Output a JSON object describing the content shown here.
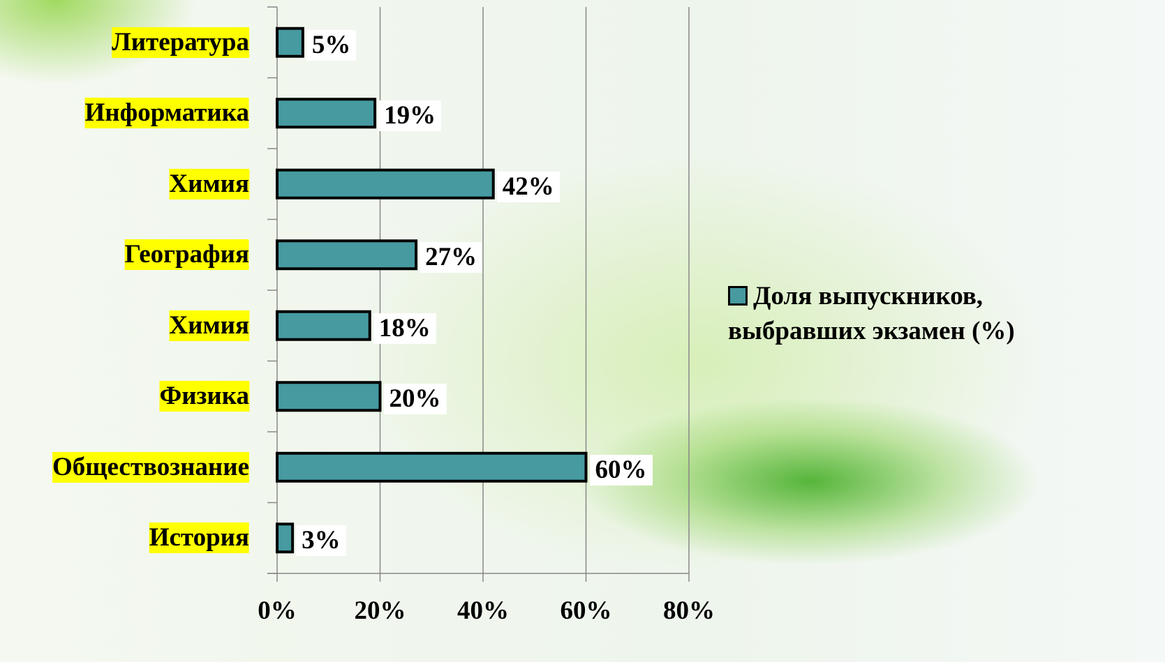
{
  "chart_data": {
    "type": "bar",
    "categories": [
      "Литература",
      "Информатика",
      "Химия",
      "География",
      "Химия",
      "Физика",
      "Обществознание",
      "История"
    ],
    "series": [
      {
        "name": "Доля выпускников, выбравших экзамен (%)",
        "color": "#469aa0",
        "values": [
          5,
          19,
          42,
          27,
          18,
          20,
          60,
          3
        ],
        "value_labels": [
          "5%",
          "19%",
          "42%",
          "27%",
          "18%",
          "20%",
          "60%",
          "3%"
        ]
      }
    ],
    "xlim": [
      0,
      80
    ],
    "xticks": [
      {
        "value": 0,
        "label": "0%"
      },
      {
        "value": 20,
        "label": "20%"
      },
      {
        "value": 40,
        "label": "40%"
      },
      {
        "value": 60,
        "label": "60%"
      },
      {
        "value": 80,
        "label": "80%"
      }
    ],
    "grid": true
  }
}
